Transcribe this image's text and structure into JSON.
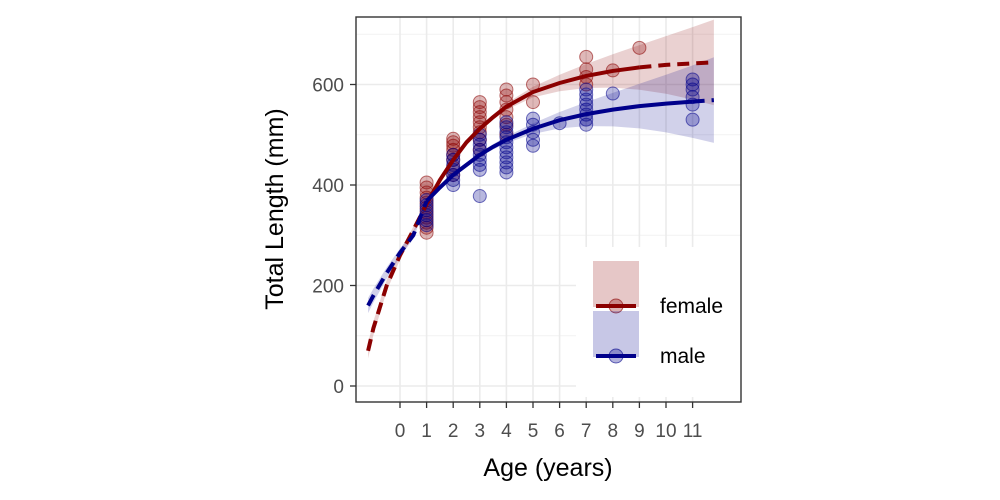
{
  "chart_data": {
    "type": "scatter",
    "title": "",
    "xlabel": "Age (years)",
    "ylabel": "Total Length (mm)",
    "xlim": [
      -1.6,
      12.2
    ],
    "ylim": [
      -30,
      735
    ],
    "x_ticks": [
      0,
      1,
      2,
      3,
      4,
      5,
      6,
      7,
      8,
      9,
      10,
      11
    ],
    "x_tick_labels": [
      "0",
      "1",
      "2",
      "3",
      "4",
      "5",
      "6",
      "7",
      "8",
      "9",
      "10",
      "11"
    ],
    "y_ticks": [
      0,
      200,
      400,
      600
    ],
    "y_tick_labels": [
      "0",
      "200",
      "400",
      "600"
    ],
    "grid": true,
    "legend_position": "bottom-right",
    "series": [
      {
        "name": "female",
        "color": "#8b0000",
        "points": [
          [
            1,
            305
          ],
          [
            1,
            315
          ],
          [
            1,
            325
          ],
          [
            1,
            335
          ],
          [
            1,
            345
          ],
          [
            1,
            355
          ],
          [
            1,
            365
          ],
          [
            1,
            375
          ],
          [
            1,
            385
          ],
          [
            1,
            395
          ],
          [
            1,
            405
          ],
          [
            2,
            420
          ],
          [
            2,
            435
          ],
          [
            2,
            450
          ],
          [
            2,
            460
          ],
          [
            2,
            470
          ],
          [
            2,
            478
          ],
          [
            2,
            485
          ],
          [
            2,
            492
          ],
          [
            3,
            470
          ],
          [
            3,
            490
          ],
          [
            3,
            505
          ],
          [
            3,
            515
          ],
          [
            3,
            525
          ],
          [
            3,
            535
          ],
          [
            3,
            545
          ],
          [
            3,
            555
          ],
          [
            3,
            565
          ],
          [
            4,
            500
          ],
          [
            4,
            520
          ],
          [
            4,
            535
          ],
          [
            4,
            550
          ],
          [
            4,
            565
          ],
          [
            4,
            578
          ],
          [
            4,
            590
          ],
          [
            5,
            565
          ],
          [
            5,
            600
          ],
          [
            7,
            600
          ],
          [
            7,
            615
          ],
          [
            7,
            630
          ],
          [
            7,
            655
          ],
          [
            8,
            628
          ],
          [
            9,
            673
          ]
        ],
        "fit": [
          [
            -1.2,
            70
          ],
          [
            -1,
            115
          ],
          [
            -0.5,
            200
          ],
          [
            0,
            260
          ],
          [
            0.5,
            310
          ],
          [
            1,
            362
          ],
          [
            1.5,
            410
          ],
          [
            2,
            450
          ],
          [
            2.5,
            485
          ],
          [
            3,
            512
          ],
          [
            3.5,
            535
          ],
          [
            4,
            556
          ],
          [
            5,
            585
          ],
          [
            6,
            603
          ],
          [
            7,
            617
          ],
          [
            8,
            627
          ],
          [
            9,
            634
          ],
          [
            10,
            639
          ],
          [
            11,
            642
          ],
          [
            11.8,
            644
          ]
        ]
      },
      {
        "name": "male",
        "color": "#00008b",
        "points": [
          [
            1,
            320
          ],
          [
            1,
            330
          ],
          [
            1,
            340
          ],
          [
            1,
            350
          ],
          [
            1,
            360
          ],
          [
            1,
            370
          ],
          [
            2,
            400
          ],
          [
            2,
            410
          ],
          [
            2,
            420
          ],
          [
            2,
            430
          ],
          [
            2,
            440
          ],
          [
            2,
            450
          ],
          [
            2,
            460
          ],
          [
            3,
            378
          ],
          [
            3,
            430
          ],
          [
            3,
            440
          ],
          [
            3,
            450
          ],
          [
            3,
            460
          ],
          [
            3,
            470
          ],
          [
            3,
            480
          ],
          [
            3,
            490
          ],
          [
            3,
            500
          ],
          [
            4,
            425
          ],
          [
            4,
            435
          ],
          [
            4,
            445
          ],
          [
            4,
            455
          ],
          [
            4,
            465
          ],
          [
            4,
            475
          ],
          [
            4,
            485
          ],
          [
            4,
            495
          ],
          [
            4,
            505
          ],
          [
            4,
            515
          ],
          [
            4,
            525
          ],
          [
            5,
            478
          ],
          [
            5,
            490
          ],
          [
            5,
            505
          ],
          [
            5,
            520
          ],
          [
            5,
            532
          ],
          [
            6,
            523
          ],
          [
            7,
            520
          ],
          [
            7,
            530
          ],
          [
            7,
            540
          ],
          [
            7,
            550
          ],
          [
            7,
            560
          ],
          [
            7,
            570
          ],
          [
            7,
            580
          ],
          [
            7,
            590
          ],
          [
            8,
            582
          ],
          [
            11,
            530
          ],
          [
            11,
            560
          ],
          [
            11,
            575
          ],
          [
            11,
            590
          ],
          [
            11,
            600
          ],
          [
            11,
            610
          ]
        ],
        "fit": [
          [
            -1.2,
            160
          ],
          [
            -1,
            180
          ],
          [
            -0.5,
            225
          ],
          [
            0,
            265
          ],
          [
            0.5,
            300
          ],
          [
            1,
            368
          ],
          [
            1.5,
            395
          ],
          [
            2,
            420
          ],
          [
            2.5,
            440
          ],
          [
            3,
            460
          ],
          [
            3.5,
            476
          ],
          [
            4,
            490
          ],
          [
            5,
            512
          ],
          [
            6,
            529
          ],
          [
            7,
            541
          ],
          [
            8,
            550
          ],
          [
            9,
            557
          ],
          [
            10,
            562
          ],
          [
            11,
            566
          ],
          [
            11.8,
            569
          ]
        ]
      }
    ]
  }
}
